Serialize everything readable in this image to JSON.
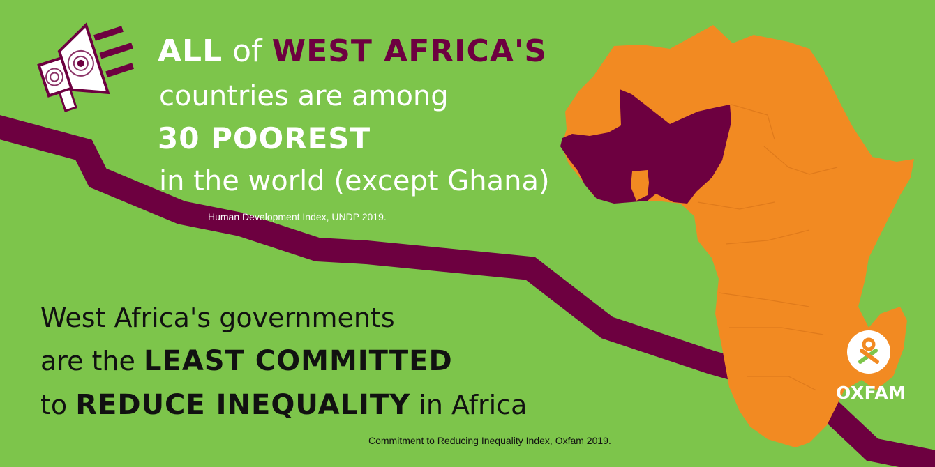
{
  "headline_top": {
    "w1": "ALL",
    "w2": "of",
    "w3": "WEST AFRICA'S",
    "line2a": "countries",
    "line2b": "are among",
    "line3": "30 POOREST",
    "line4": "in the world (except Ghana)"
  },
  "source_top": "Human Development Index, UNDP 2019.",
  "headline_bottom": {
    "line1": "West Africa's governments",
    "line2a": "are the",
    "line2b": "LEAST COMMITTED",
    "line3a": "to",
    "line3b": "REDUCE INEQUALITY",
    "line3c": "in Africa"
  },
  "source_bottom": "Commitment to Reducing Inequality Index, Oxfam 2019.",
  "logo": {
    "text": "OXFAM"
  },
  "colors": {
    "background": "#7dc54b",
    "plum": "#6d0040",
    "orange": "#f28a22",
    "white": "#ffffff"
  },
  "icons": [
    "megaphone-icon",
    "africa-map",
    "oxfam-logo-icon",
    "descending-line"
  ]
}
